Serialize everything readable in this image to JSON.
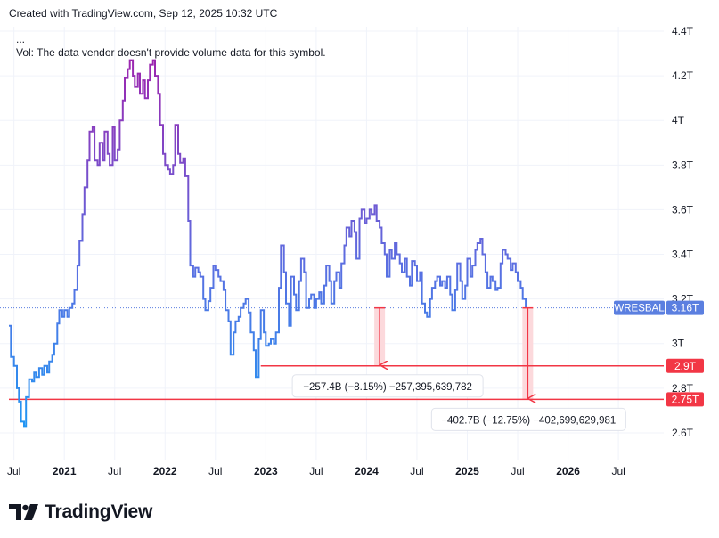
{
  "header": {
    "created_with": "Created with TradingView.com, Sep 12, 2025 10:32 UTC",
    "ellipsis": "...",
    "vol_notice": "Vol: The data vendor doesn't provide volume data for this symbol."
  },
  "brand": {
    "name": "TradingView",
    "icon": "tradingview-logo-icon"
  },
  "colors": {
    "line_start": "#2196f3",
    "line_mid": "#5b6ee1",
    "line_peak": "#9c27b0",
    "grid": "#f0f3fa",
    "series_label_bg": "#5b7fe0",
    "level": "#f23645",
    "range_fill": "#fcd9dc",
    "text": "#131722"
  },
  "chart_data": {
    "type": "line",
    "symbol": "WRESBAL",
    "last_value_label": "3.16T",
    "last_value": 3.16,
    "ylim": [
      2.52,
      4.42
    ],
    "y_ticks": [
      {
        "v": 2.6,
        "label": "2.6T"
      },
      {
        "v": 2.8,
        "label": "2.8T"
      },
      {
        "v": 3.0,
        "label": "3T"
      },
      {
        "v": 3.2,
        "label": "3.2T"
      },
      {
        "v": 3.4,
        "label": "3.4T"
      },
      {
        "v": 3.6,
        "label": "3.6T"
      },
      {
        "v": 3.8,
        "label": "3.8T"
      },
      {
        "v": 4.0,
        "label": "4T"
      },
      {
        "v": 4.2,
        "label": "4.2T"
      },
      {
        "v": 4.4,
        "label": "4.4T"
      }
    ],
    "xlim": [
      2020.45,
      2026.95
    ],
    "x_ticks": [
      {
        "t": 2020.5,
        "label": "Jul",
        "bold": false
      },
      {
        "t": 2021.0,
        "label": "2021",
        "bold": true
      },
      {
        "t": 2021.5,
        "label": "Jul",
        "bold": false
      },
      {
        "t": 2022.0,
        "label": "2022",
        "bold": true
      },
      {
        "t": 2022.5,
        "label": "Jul",
        "bold": false
      },
      {
        "t": 2023.0,
        "label": "2023",
        "bold": true
      },
      {
        "t": 2023.5,
        "label": "Jul",
        "bold": false
      },
      {
        "t": 2024.0,
        "label": "2024",
        "bold": true
      },
      {
        "t": 2024.5,
        "label": "Jul",
        "bold": false
      },
      {
        "t": 2025.0,
        "label": "2025",
        "bold": true
      },
      {
        "t": 2025.5,
        "label": "Jul",
        "bold": false
      },
      {
        "t": 2026.0,
        "label": "2026",
        "bold": true
      },
      {
        "t": 2026.5,
        "label": "Jul",
        "bold": false
      }
    ],
    "series": [
      {
        "points": [
          [
            2020.45,
            3.08
          ],
          [
            2020.47,
            2.94
          ],
          [
            2020.5,
            2.9
          ],
          [
            2020.53,
            2.8
          ],
          [
            2020.55,
            2.74
          ],
          [
            2020.57,
            2.65
          ],
          [
            2020.6,
            2.63
          ],
          [
            2020.62,
            2.76
          ],
          [
            2020.65,
            2.84
          ],
          [
            2020.68,
            2.83
          ],
          [
            2020.7,
            2.87
          ],
          [
            2020.72,
            2.85
          ],
          [
            2020.75,
            2.89
          ],
          [
            2020.78,
            2.86
          ],
          [
            2020.8,
            2.9
          ],
          [
            2020.83,
            2.87
          ],
          [
            2020.85,
            2.92
          ],
          [
            2020.88,
            2.95
          ],
          [
            2020.9,
            3.0
          ],
          [
            2020.93,
            3.09
          ],
          [
            2020.95,
            3.15
          ],
          [
            2020.98,
            3.12
          ],
          [
            2021.0,
            3.15
          ],
          [
            2021.03,
            3.12
          ],
          [
            2021.05,
            3.16
          ],
          [
            2021.08,
            3.18
          ],
          [
            2021.1,
            3.24
          ],
          [
            2021.13,
            3.35
          ],
          [
            2021.15,
            3.46
          ],
          [
            2021.18,
            3.58
          ],
          [
            2021.2,
            3.7
          ],
          [
            2021.23,
            3.82
          ],
          [
            2021.25,
            3.95
          ],
          [
            2021.28,
            3.97
          ],
          [
            2021.3,
            3.82
          ],
          [
            2021.33,
            3.8
          ],
          [
            2021.35,
            3.9
          ],
          [
            2021.38,
            3.82
          ],
          [
            2021.4,
            3.95
          ],
          [
            2021.43,
            3.85
          ],
          [
            2021.45,
            3.8
          ],
          [
            2021.48,
            3.97
          ],
          [
            2021.5,
            3.82
          ],
          [
            2021.53,
            3.87
          ],
          [
            2021.55,
            4.0
          ],
          [
            2021.58,
            4.09
          ],
          [
            2021.6,
            4.19
          ],
          [
            2021.63,
            4.23
          ],
          [
            2021.65,
            4.27
          ],
          [
            2021.68,
            4.2
          ],
          [
            2021.7,
            4.15
          ],
          [
            2021.73,
            4.21
          ],
          [
            2021.75,
            4.12
          ],
          [
            2021.78,
            4.18
          ],
          [
            2021.8,
            4.1
          ],
          [
            2021.83,
            4.18
          ],
          [
            2021.85,
            4.25
          ],
          [
            2021.88,
            4.27
          ],
          [
            2021.9,
            4.2
          ],
          [
            2021.93,
            4.12
          ],
          [
            2021.95,
            3.98
          ],
          [
            2021.98,
            3.85
          ],
          [
            2022.0,
            3.8
          ],
          [
            2022.03,
            3.78
          ],
          [
            2022.05,
            3.76
          ],
          [
            2022.08,
            3.8
          ],
          [
            2022.1,
            3.98
          ],
          [
            2022.13,
            3.85
          ],
          [
            2022.15,
            3.81
          ],
          [
            2022.18,
            3.83
          ],
          [
            2022.2,
            3.75
          ],
          [
            2022.23,
            3.55
          ],
          [
            2022.25,
            3.35
          ],
          [
            2022.28,
            3.3
          ],
          [
            2022.3,
            3.34
          ],
          [
            2022.33,
            3.32
          ],
          [
            2022.35,
            3.3
          ],
          [
            2022.38,
            3.2
          ],
          [
            2022.4,
            3.15
          ],
          [
            2022.43,
            3.19
          ],
          [
            2022.45,
            3.25
          ],
          [
            2022.48,
            3.35
          ],
          [
            2022.5,
            3.33
          ],
          [
            2022.53,
            3.3
          ],
          [
            2022.55,
            3.28
          ],
          [
            2022.58,
            3.24
          ],
          [
            2022.6,
            3.15
          ],
          [
            2022.63,
            3.1
          ],
          [
            2022.65,
            2.95
          ],
          [
            2022.68,
            3.05
          ],
          [
            2022.7,
            3.1
          ],
          [
            2022.73,
            3.12
          ],
          [
            2022.75,
            3.16
          ],
          [
            2022.78,
            3.18
          ],
          [
            2022.8,
            3.2
          ],
          [
            2022.83,
            3.14
          ],
          [
            2022.85,
            3.05
          ],
          [
            2022.88,
            2.97
          ],
          [
            2022.9,
            2.85
          ],
          [
            2022.93,
            3.02
          ],
          [
            2022.95,
            3.15
          ],
          [
            2022.98,
            3.05
          ],
          [
            2023.0,
            2.99
          ],
          [
            2023.03,
            3.0
          ],
          [
            2023.05,
            3.02
          ],
          [
            2023.08,
            3.0
          ],
          [
            2023.1,
            3.05
          ],
          [
            2023.13,
            3.25
          ],
          [
            2023.15,
            3.44
          ],
          [
            2023.18,
            3.32
          ],
          [
            2023.2,
            3.18
          ],
          [
            2023.23,
            3.08
          ],
          [
            2023.25,
            3.3
          ],
          [
            2023.28,
            3.22
          ],
          [
            2023.3,
            3.15
          ],
          [
            2023.33,
            3.28
          ],
          [
            2023.35,
            3.38
          ],
          [
            2023.38,
            3.32
          ],
          [
            2023.4,
            3.16
          ],
          [
            2023.43,
            3.2
          ],
          [
            2023.45,
            3.22
          ],
          [
            2023.48,
            3.16
          ],
          [
            2023.5,
            3.2
          ],
          [
            2023.53,
            3.23
          ],
          [
            2023.55,
            3.18
          ],
          [
            2023.58,
            3.26
          ],
          [
            2023.6,
            3.35
          ],
          [
            2023.63,
            3.28
          ],
          [
            2023.65,
            3.18
          ],
          [
            2023.68,
            3.28
          ],
          [
            2023.7,
            3.32
          ],
          [
            2023.73,
            3.25
          ],
          [
            2023.75,
            3.36
          ],
          [
            2023.78,
            3.44
          ],
          [
            2023.8,
            3.52
          ],
          [
            2023.83,
            3.48
          ],
          [
            2023.85,
            3.55
          ],
          [
            2023.88,
            3.5
          ],
          [
            2023.9,
            3.38
          ],
          [
            2023.93,
            3.56
          ],
          [
            2023.95,
            3.6
          ],
          [
            2023.98,
            3.54
          ],
          [
            2024.0,
            3.56
          ],
          [
            2024.03,
            3.6
          ],
          [
            2024.05,
            3.58
          ],
          [
            2024.08,
            3.62
          ],
          [
            2024.1,
            3.55
          ],
          [
            2024.13,
            3.52
          ],
          [
            2024.15,
            3.45
          ],
          [
            2024.18,
            3.4
          ],
          [
            2024.2,
            3.3
          ],
          [
            2024.23,
            3.42
          ],
          [
            2024.25,
            3.38
          ],
          [
            2024.28,
            3.45
          ],
          [
            2024.3,
            3.4
          ],
          [
            2024.33,
            3.36
          ],
          [
            2024.35,
            3.32
          ],
          [
            2024.38,
            3.38
          ],
          [
            2024.4,
            3.3
          ],
          [
            2024.43,
            3.26
          ],
          [
            2024.45,
            3.37
          ],
          [
            2024.48,
            3.35
          ],
          [
            2024.5,
            3.28
          ],
          [
            2024.53,
            3.32
          ],
          [
            2024.55,
            3.18
          ],
          [
            2024.58,
            3.14
          ],
          [
            2024.6,
            3.12
          ],
          [
            2024.63,
            3.2
          ],
          [
            2024.65,
            3.25
          ],
          [
            2024.68,
            3.28
          ],
          [
            2024.7,
            3.3
          ],
          [
            2024.73,
            3.26
          ],
          [
            2024.75,
            3.28
          ],
          [
            2024.78,
            3.25
          ],
          [
            2024.8,
            3.3
          ],
          [
            2024.83,
            3.22
          ],
          [
            2024.85,
            3.15
          ],
          [
            2024.88,
            3.24
          ],
          [
            2024.9,
            3.36
          ],
          [
            2024.93,
            3.28
          ],
          [
            2024.95,
            3.2
          ],
          [
            2024.98,
            3.26
          ],
          [
            2025.0,
            3.38
          ],
          [
            2025.03,
            3.3
          ],
          [
            2025.05,
            3.35
          ],
          [
            2025.08,
            3.42
          ],
          [
            2025.1,
            3.45
          ],
          [
            2025.13,
            3.47
          ],
          [
            2025.15,
            3.4
          ],
          [
            2025.18,
            3.32
          ],
          [
            2025.2,
            3.25
          ],
          [
            2025.23,
            3.3
          ],
          [
            2025.25,
            3.28
          ],
          [
            2025.28,
            3.24
          ],
          [
            2025.3,
            3.25
          ],
          [
            2025.33,
            3.36
          ],
          [
            2025.35,
            3.42
          ],
          [
            2025.38,
            3.4
          ],
          [
            2025.4,
            3.38
          ],
          [
            2025.43,
            3.33
          ],
          [
            2025.45,
            3.36
          ],
          [
            2025.48,
            3.32
          ],
          [
            2025.5,
            3.28
          ],
          [
            2025.53,
            3.25
          ],
          [
            2025.55,
            3.2
          ],
          [
            2025.58,
            3.16
          ]
        ]
      }
    ],
    "levels": [
      {
        "value": 2.9,
        "label": "2.9T",
        "x_start": 2022.95
      },
      {
        "value": 2.75,
        "label": "2.75T",
        "x_start": 2020.45
      }
    ],
    "measurements": [
      {
        "x": 2024.13,
        "from": 3.16,
        "to": 2.9,
        "label": "−257.4B (−8.15%) −257,395,639,782"
      },
      {
        "x": 2025.6,
        "from": 3.16,
        "to": 2.75,
        "label": "−402.7B (−12.75%) −402,699,629,981"
      }
    ],
    "grid": true,
    "legend": "none"
  }
}
